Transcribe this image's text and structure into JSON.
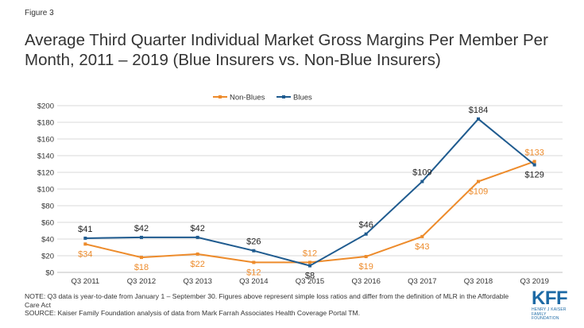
{
  "figure_label": "Figure 3",
  "title": "Average Third Quarter Individual Market Gross Margins Per Member Per Month, 2011 – 2019 (Blue Insurers vs. Non-Blue Insurers)",
  "note": "NOTE: Q3 data is year-to-date from January 1 – September 30. Figures above represent simple loss ratios and differ from the definition of MLR in the Affordable Care Act",
  "source": "SOURCE: Kaiser Family Foundation analysis of data from Mark Farrah Associates Health Coverage Portal TM.",
  "logo": {
    "wordmark": "KFF",
    "line1": "HENRY J KAISER",
    "line2": "FAMILY FOUNDATION"
  },
  "colors": {
    "non_blues": "#ed8b2b",
    "blues": "#1f5b8f",
    "grid": "#d9d9d9",
    "axis_text": "#333333",
    "brand": "#1d6aa5"
  },
  "chart_data": {
    "type": "line",
    "title": "",
    "xlabel": "",
    "ylabel": "",
    "categories": [
      "Q3 2011",
      "Q3 2012",
      "Q3 2013",
      "Q3 2014",
      "Q3 2015",
      "Q3 2016",
      "Q3 2017",
      "Q3 2018",
      "Q3 2019"
    ],
    "ylim": [
      0,
      200
    ],
    "yticks": [
      0,
      20,
      40,
      60,
      80,
      100,
      120,
      140,
      160,
      180,
      200
    ],
    "ytick_labels": [
      "$0",
      "$20",
      "$40",
      "$60",
      "$80",
      "$100",
      "$120",
      "$140",
      "$160",
      "$180",
      "$200"
    ],
    "grid": true,
    "legend_position": "top-center",
    "series": [
      {
        "name": "Non-Blues",
        "color": "#ed8b2b",
        "values": [
          34,
          18,
          22,
          12,
          12,
          19,
          43,
          109,
          133
        ],
        "labels": [
          "$34",
          "$18",
          "$22",
          "$12",
          "$12",
          "$19",
          "$43",
          "$109",
          "$133"
        ],
        "label_positions": [
          "below",
          "below",
          "below",
          "below",
          "above",
          "below",
          "below",
          "below",
          "above"
        ]
      },
      {
        "name": "Blues",
        "color": "#1f5b8f",
        "values": [
          41,
          42,
          42,
          26,
          8,
          46,
          109,
          184,
          129
        ],
        "labels": [
          "$41",
          "$42",
          "$42",
          "$26",
          "$8",
          "$46",
          "$109",
          "$184",
          "$129"
        ],
        "label_positions": [
          "above",
          "above",
          "above",
          "above",
          "below",
          "above",
          "above",
          "above",
          "below"
        ]
      }
    ]
  }
}
